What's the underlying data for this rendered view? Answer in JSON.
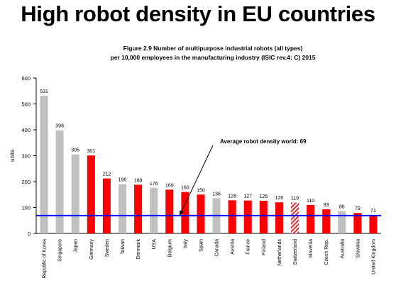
{
  "slide": {
    "title": "High robot density in EU countries"
  },
  "chart_data": {
    "type": "bar",
    "title_lines": [
      "Figure 2.9 Number of multipurpose industrial robots (all types)",
      "per 10,000 employees in the manufacturing industry (ISIC rev.4: C) 2015"
    ],
    "ylabel": "units",
    "xlabel": "",
    "ylim": [
      0,
      600
    ],
    "yticks": [
      0,
      100,
      200,
      300,
      400,
      500,
      600
    ],
    "grid": false,
    "legend": "none",
    "colors": {
      "eu": "#ff0000",
      "non_eu": "#c0c0c0",
      "reference_line": "#0000ff",
      "hatch_eu": "#ff0000"
    },
    "categories": [
      "Republic of Korea",
      "Singapore",
      "Japan",
      "Germany",
      "Sweden",
      "Taiwan",
      "Denmark",
      "USA",
      "Belgium",
      "Italy",
      "Spain",
      "Canada",
      "Austria",
      "France",
      "Finland",
      "Netherlands",
      "Switzerland",
      "Slovenia",
      "Czech Rep.",
      "Australia",
      "Slovakia",
      "United Kingdom"
    ],
    "values": [
      531,
      398,
      305,
      301,
      212,
      190,
      188,
      176,
      169,
      160,
      150,
      136,
      128,
      127,
      126,
      120,
      119,
      110,
      93,
      86,
      79,
      71
    ],
    "bar_style": [
      "non_eu",
      "non_eu",
      "non_eu",
      "eu",
      "eu",
      "non_eu",
      "eu",
      "non_eu",
      "eu",
      "eu",
      "eu",
      "non_eu",
      "eu",
      "eu",
      "eu",
      "eu",
      "hatched",
      "eu",
      "eu",
      "non_eu",
      "eu",
      "eu"
    ],
    "reference_line": {
      "value": 69,
      "label": "Average robot density world: 69"
    }
  }
}
